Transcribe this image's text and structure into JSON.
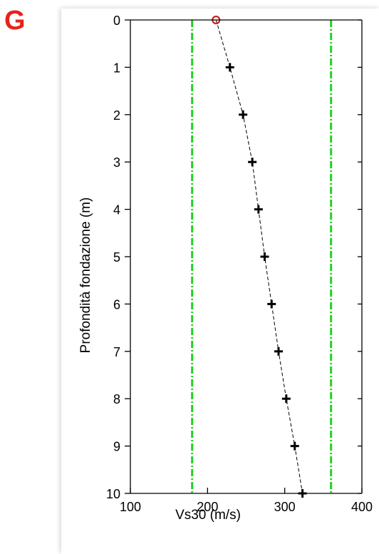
{
  "panel_label": "G",
  "colors": {
    "panel_label": "#e8221a",
    "limit_lines": "#1fd41f",
    "series": "#000000",
    "first_point": "#c8281e"
  },
  "chart_data": {
    "type": "scatter",
    "title": "",
    "xlabel": "Vs30 (m/s)",
    "ylabel": "Profondità fondazione (m)",
    "xlim": [
      100,
      400
    ],
    "ylim": [
      0,
      10
    ],
    "y_inverted": true,
    "x_ticks": [
      100,
      200,
      300,
      400
    ],
    "y_ticks": [
      0,
      1,
      2,
      3,
      4,
      5,
      6,
      7,
      8,
      9,
      10
    ],
    "grid": false,
    "series": [
      {
        "marker": "plus",
        "line": "dashed",
        "x": [
          211,
          229,
          246,
          258,
          266,
          274,
          283,
          292,
          302,
          313,
          323
        ],
        "y": [
          0,
          1,
          2,
          3,
          4,
          5,
          6,
          7,
          8,
          9,
          10
        ]
      }
    ],
    "limit_lines_x": [
      180,
      360
    ]
  }
}
